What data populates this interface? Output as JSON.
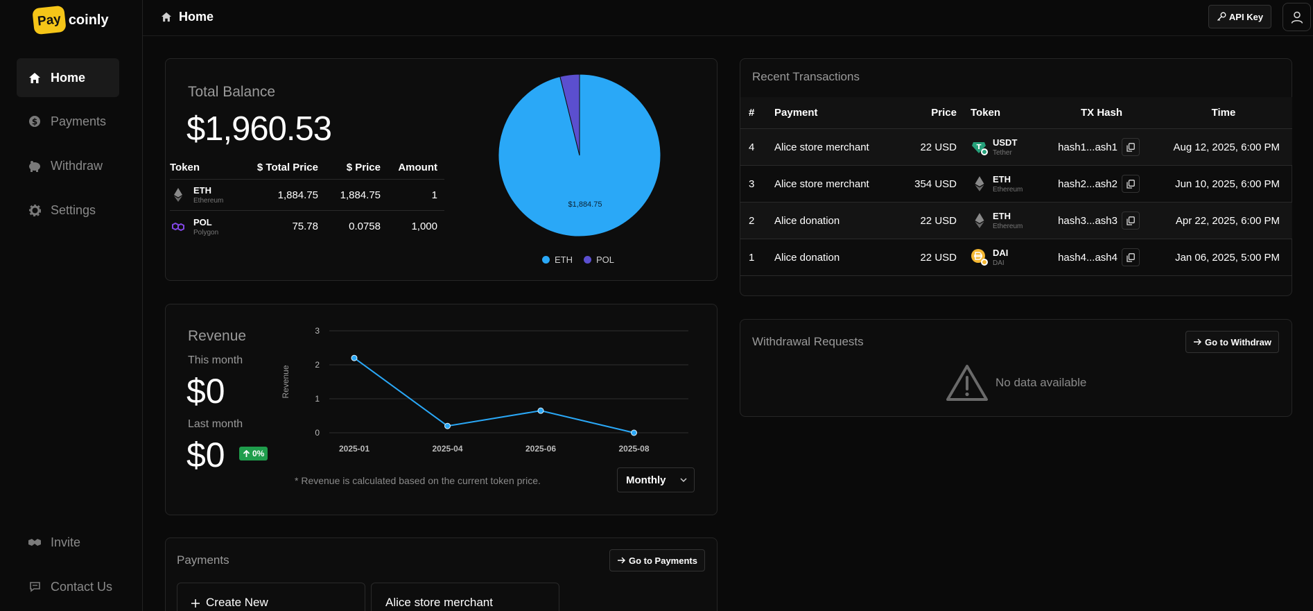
{
  "brand": {
    "pay": "Pay",
    "coinly": "coinly"
  },
  "sidebar": {
    "items": [
      {
        "label": "Home",
        "icon": "home-icon"
      },
      {
        "label": "Payments",
        "icon": "dollar-icon"
      },
      {
        "label": "Withdraw",
        "icon": "piggy-bank-icon"
      },
      {
        "label": "Settings",
        "icon": "gear-icon"
      }
    ],
    "bottom": [
      {
        "label": "Invite",
        "icon": "handshake-icon"
      },
      {
        "label": "Contact Us",
        "icon": "message-icon"
      }
    ]
  },
  "header": {
    "title": "Home",
    "api_key": "API Key"
  },
  "balance": {
    "label": "Total Balance",
    "value": "$1,960.53",
    "columns": [
      "Token",
      "$ Total Price",
      "$ Price",
      "Amount"
    ],
    "rows": [
      {
        "symbol": "ETH",
        "name": "Ethereum",
        "total": "1,884.75",
        "price": "1,884.75",
        "amount": "1"
      },
      {
        "symbol": "POL",
        "name": "Polygon",
        "total": "75.78",
        "price": "0.0758",
        "amount": "1,000"
      }
    ],
    "pie": {
      "type": "pie",
      "labels": [
        "ETH",
        "POL"
      ],
      "values": [
        1884.75,
        75.78
      ],
      "colors": [
        "#2aa8f7",
        "#5b4fcf"
      ],
      "slice_label": "$1,884.75"
    }
  },
  "revenue": {
    "label": "Revenue",
    "this_month_label": "This month",
    "this_month": "$0",
    "last_month_label": "Last month",
    "last_month": "$0",
    "change": "0%",
    "note": "* Revenue is calculated based on the current token price.",
    "period": "Monthly"
  },
  "chart_data": {
    "type": "line",
    "x": [
      "2025-01",
      "2025-04",
      "2025-06",
      "2025-08"
    ],
    "series": [
      {
        "values": [
          2.2,
          0.2,
          0.65,
          0
        ]
      }
    ],
    "ylabel": "Revenue",
    "yticks": [
      0,
      1,
      2,
      3
    ],
    "ylim": [
      0,
      3
    ],
    "grid": true,
    "color": "#2aa8f7"
  },
  "payments": {
    "title": "Payments",
    "go": "Go to Payments",
    "create": "Create New",
    "cards": [
      "Alice store merchant"
    ]
  },
  "transactions": {
    "title": "Recent Transactions",
    "columns": [
      "#",
      "Payment",
      "Price",
      "Token",
      "TX Hash",
      "Time"
    ],
    "rows": [
      {
        "n": "4",
        "payment": "Alice store merchant",
        "price": "22 USD",
        "symbol": "USDT",
        "name": "Tether",
        "hash": "hash1...ash1",
        "time": "Aug 12, 2025, 6:00 PM",
        "icon": "usdt-icon"
      },
      {
        "n": "3",
        "payment": "Alice store merchant",
        "price": "354 USD",
        "symbol": "ETH",
        "name": "Ethereum",
        "hash": "hash2...ash2",
        "time": "Jun 10, 2025, 6:00 PM",
        "icon": "eth-icon"
      },
      {
        "n": "2",
        "payment": "Alice donation",
        "price": "22 USD",
        "symbol": "ETH",
        "name": "Ethereum",
        "hash": "hash3...ash3",
        "time": "Apr 22, 2025, 6:00 PM",
        "icon": "eth-icon"
      },
      {
        "n": "1",
        "payment": "Alice donation",
        "price": "22 USD",
        "symbol": "DAI",
        "name": "DAI",
        "hash": "hash4...ash4",
        "time": "Jan 06, 2025, 5:00 PM",
        "icon": "dai-icon"
      }
    ]
  },
  "withdrawals": {
    "title": "Withdrawal Requests",
    "go": "Go to Withdraw",
    "empty": "No data available"
  }
}
